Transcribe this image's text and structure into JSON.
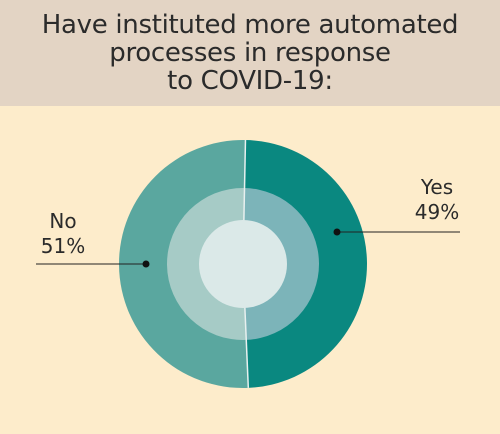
{
  "title": "Have instituted more automated\nprocesses in response\nto COVID-19:",
  "colors": {
    "background": "#fdeccb",
    "header": "#e3d4c4",
    "yes": "#0a8880",
    "no": "#5aa79f",
    "inner_ring_yes": "#7cb4b9",
    "inner_ring_no": "#a6cbc6",
    "center": "#dbe9e8"
  },
  "chart_data": {
    "type": "pie",
    "title": "Have instituted more automated processes in response to COVID-19:",
    "categories": [
      "Yes",
      "No"
    ],
    "values": [
      49,
      51
    ],
    "value_labels": [
      "49%",
      "51%"
    ]
  }
}
